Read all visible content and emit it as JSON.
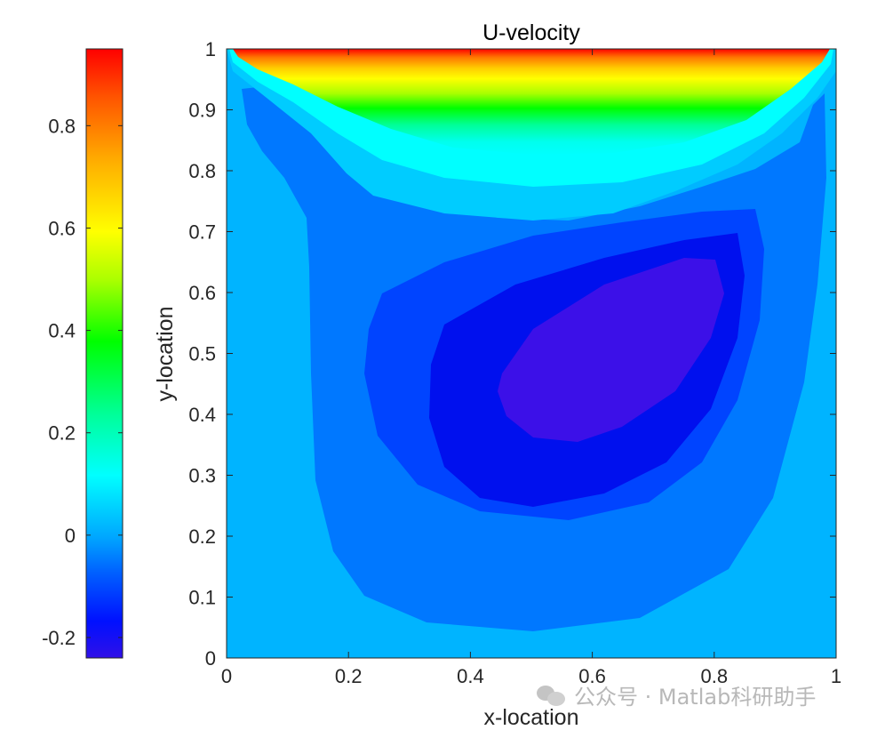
{
  "chart_data": {
    "type": "contourf",
    "title": "U-velocity",
    "xlabel": "x-location",
    "ylabel": "y-location",
    "xlim": [
      0,
      1
    ],
    "ylim": [
      0,
      1
    ],
    "x_ticks": [
      "0",
      "0.2",
      "0.4",
      "0.6",
      "0.8",
      "1"
    ],
    "y_ticks": [
      "0",
      "0.1",
      "0.2",
      "0.3",
      "0.4",
      "0.5",
      "0.6",
      "0.7",
      "0.8",
      "0.9",
      "1"
    ],
    "colorbar": {
      "colormap": "jet",
      "clim": [
        -0.24,
        0.95
      ],
      "ticks": [
        "-0.2",
        "0",
        "0.2",
        "0.4",
        "0.6",
        "0.8"
      ],
      "tick_values": [
        -0.2,
        0,
        0.2,
        0.4,
        0.6,
        0.8
      ]
    },
    "contour_levels": [
      {
        "level": -0.2,
        "color": "#3c10e8"
      },
      {
        "level": -0.15,
        "color": "#0010ee"
      },
      {
        "level": -0.1,
        "color": "#0044ff"
      },
      {
        "level": -0.05,
        "color": "#0078ff"
      },
      {
        "level": 0,
        "color": "#00b4ff"
      },
      {
        "level": 0.05,
        "color": "#00ccff"
      },
      {
        "level": 0.1,
        "color": "#00ffff"
      },
      {
        "level": 0.2,
        "color": "#00ffcc"
      },
      {
        "level": 0.3,
        "color": "#00ff88"
      },
      {
        "level": 0.4,
        "color": "#00ff00"
      },
      {
        "level": 0.5,
        "color": "#88ff00"
      },
      {
        "level": 0.6,
        "color": "#ffff00"
      },
      {
        "level": 0.7,
        "color": "#ffcc00"
      },
      {
        "level": 0.8,
        "color": "#ff8800"
      },
      {
        "level": 0.9,
        "color": "#ff3300"
      },
      {
        "level": 0.95,
        "color": "#ff0000"
      }
    ]
  },
  "watermark": "公众号 · Matlab科研助手"
}
